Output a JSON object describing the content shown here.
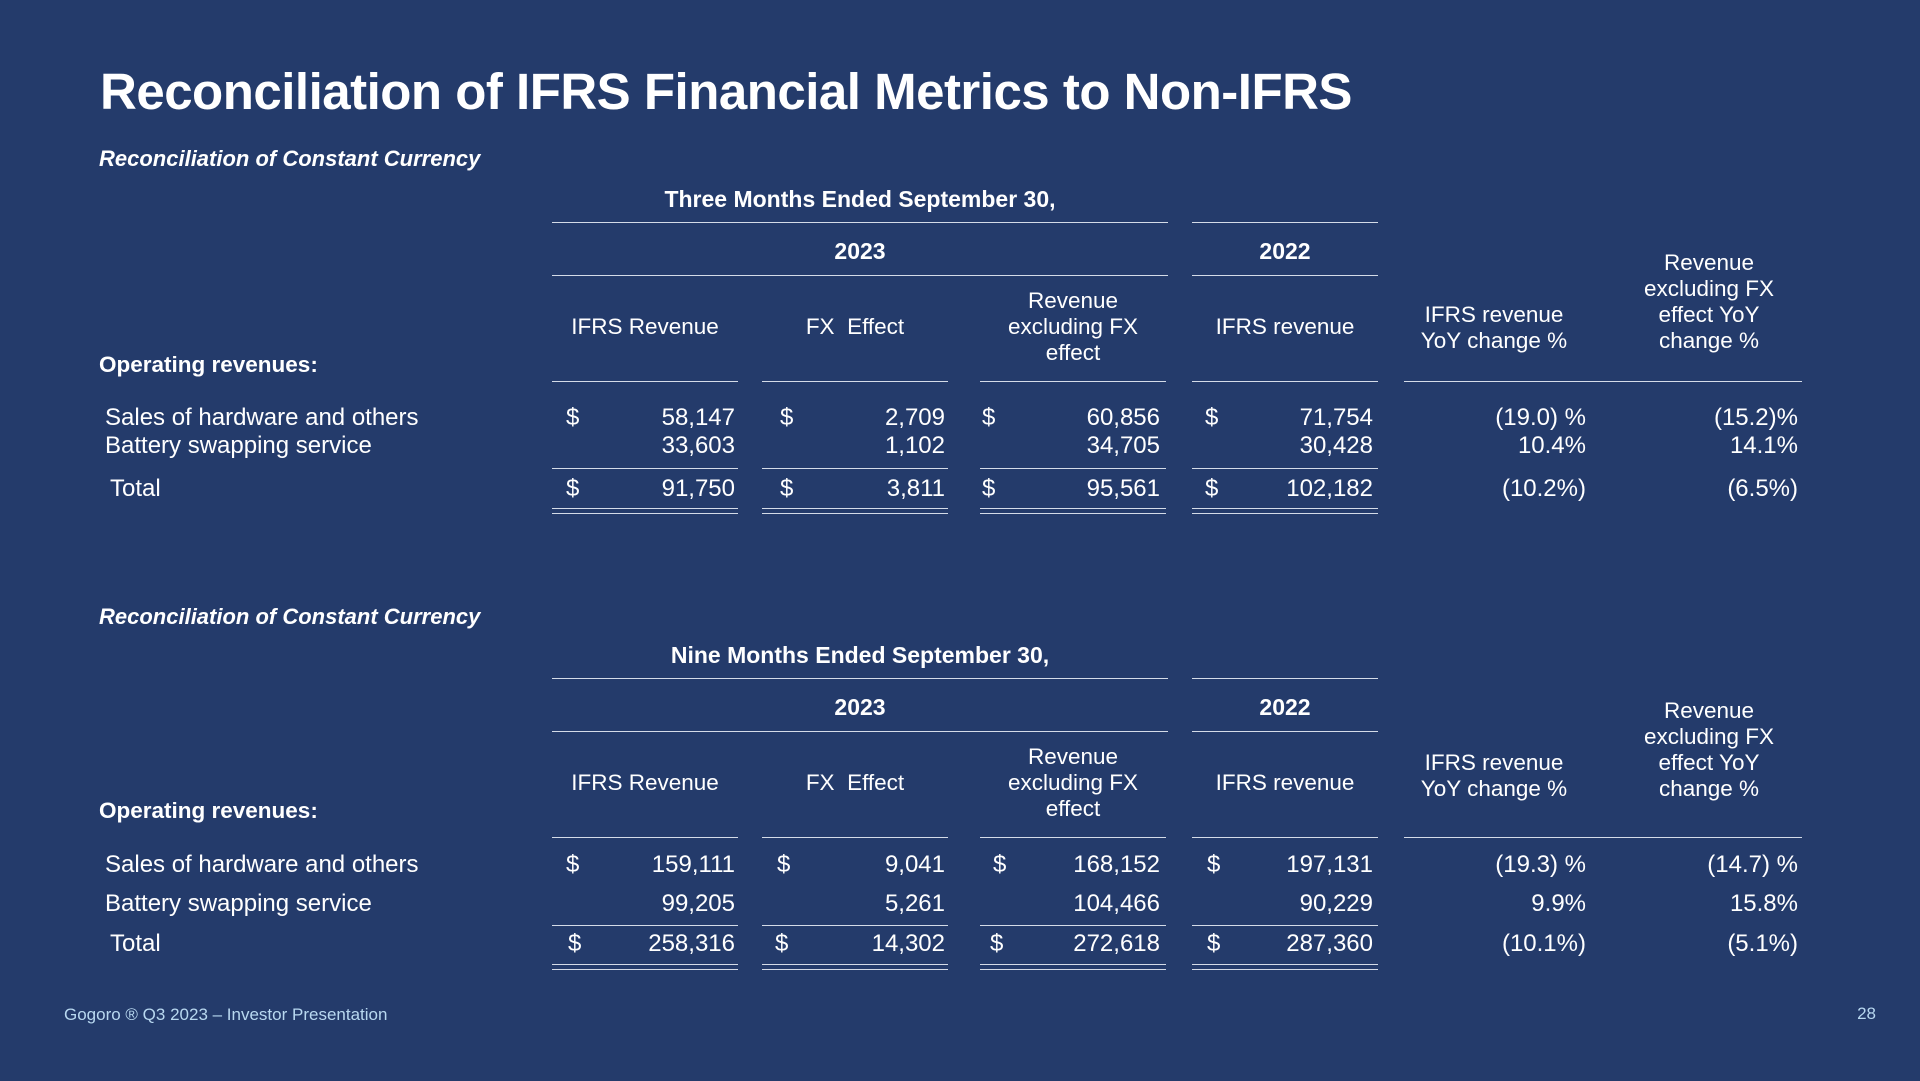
{
  "title": "Reconciliation of IFRS Financial Metrics to Non-IFRS",
  "columns": {
    "ifrs_revenue_2023": "IFRS Revenue",
    "fx_effect": "FX  Effect",
    "rev_excl_fx": "Revenue excluding FX effect",
    "ifrs_revenue_2022": "IFRS revenue",
    "yoy_change": "IFRS revenue YoY change %",
    "excl_fx_yoy": "Revenue excluding FX effect YoY change %"
  },
  "operating_revenues_label": "Operating revenues:",
  "currency_symbol": "$",
  "sections": [
    {
      "subtitle": "Reconciliation of Constant Currency",
      "period": "Three Months Ended September 30,",
      "year_current": "2023",
      "year_prior": "2022",
      "rows": [
        {
          "label": "Sales of hardware and others",
          "ifrs_2023": "58,147",
          "fx": "2,709",
          "excl_fx": "60,856",
          "ifrs_2022": "71,754",
          "yoy": "(19.0) %",
          "excl_yoy": "(15.2)%"
        },
        {
          "label": "Battery swapping service",
          "ifrs_2023": "33,603",
          "fx": "1,102",
          "excl_fx": "34,705",
          "ifrs_2022": "30,428",
          "yoy": "10.4%",
          "excl_yoy": "14.1%"
        }
      ],
      "total": {
        "label": "Total",
        "ifrs_2023": "91,750",
        "fx": "3,811",
        "excl_fx": "95,561",
        "ifrs_2022": "102,182",
        "yoy": "(10.2%)",
        "excl_yoy": "(6.5%)"
      }
    },
    {
      "subtitle": "Reconciliation of Constant Currency",
      "period": "Nine Months Ended September 30,",
      "year_current": "2023",
      "year_prior": "2022",
      "rows": [
        {
          "label": "Sales of hardware and others",
          "ifrs_2023": "159,111",
          "fx": "9,041",
          "excl_fx": "168,152",
          "ifrs_2022": "197,131",
          "yoy": "(19.3) %",
          "excl_yoy": "(14.7) %"
        },
        {
          "label": "Battery swapping service",
          "ifrs_2023": "99,205",
          "fx": "5,261",
          "excl_fx": "104,466",
          "ifrs_2022": "90,229",
          "yoy": "9.9%",
          "excl_yoy": "15.8%"
        }
      ],
      "total": {
        "label": "Total",
        "ifrs_2023": "258,316",
        "fx": "14,302",
        "excl_fx": "272,618",
        "ifrs_2022": "287,360",
        "yoy": "(10.1%)",
        "excl_yoy": "(5.1%)"
      }
    }
  ],
  "footer": {
    "text": "Gogoro ® Q3 2023 – Investor Presentation",
    "page_number": "28"
  }
}
